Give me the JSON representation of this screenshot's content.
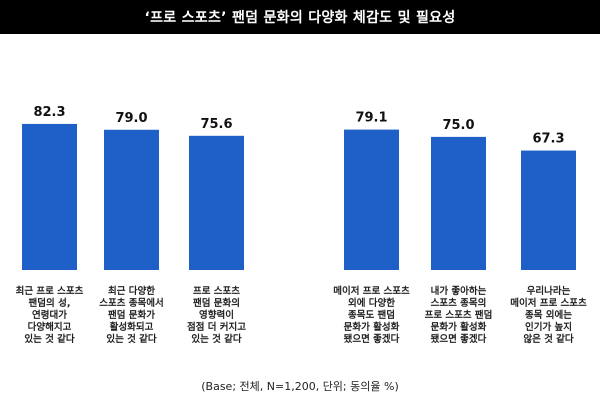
{
  "title": "‘프로 스포츠’ 팬덤 문화의 다양화 체감도 및 필요성",
  "footnote": "(Base; 전체, N=1,200, 단위; 동의율 %)",
  "colors": {
    "bar": "#1F5FC8",
    "title_bg": "#000000",
    "title_text": "#FFFFFF"
  },
  "chart_data": {
    "type": "bar",
    "title": "‘프로 스포츠’ 팬덤 문화의 다양화 체감도 및 필요성",
    "xlabel": "",
    "ylabel": "",
    "ylim": [
      0,
      100
    ],
    "grid": false,
    "legend": "none",
    "groups": [
      {
        "categories": [
          0,
          1,
          2
        ]
      },
      {
        "categories": [
          3,
          4,
          5
        ]
      }
    ],
    "categories": [
      [
        "최근 프로 스포츠",
        "팬덤의 성,",
        "연령대가",
        "다양해지고",
        "있는 것 같다"
      ],
      [
        "최근 다양한",
        "스포츠 종목에서",
        "팬덤 문화가",
        "활성화되고",
        "있는 것 같다"
      ],
      [
        "프로 스포츠",
        "팬덤 문화의",
        "영향력이",
        "점점 더 커지고",
        "있는 것 같다"
      ],
      [
        "메이저 프로 스포츠",
        "외에 다양한",
        "종목도 팬덤",
        "문화가 활성화",
        "됐으면 좋겠다"
      ],
      [
        "내가 좋아하는",
        "스포츠 종목의",
        "프로 스포츠 팬덤",
        "문화가 활성화",
        "됐으면 좋겠다"
      ],
      [
        "우리나라는",
        "메이저 프로 스포츠",
        "종목 외에는",
        "인기가 높지",
        "않은 것 같다"
      ]
    ],
    "values": [
      82.3,
      79.0,
      75.6,
      79.1,
      75.0,
      67.3
    ],
    "value_labels": [
      "82.3",
      "79.0",
      "75.6",
      "79.1",
      "75.0",
      "67.3"
    ]
  }
}
